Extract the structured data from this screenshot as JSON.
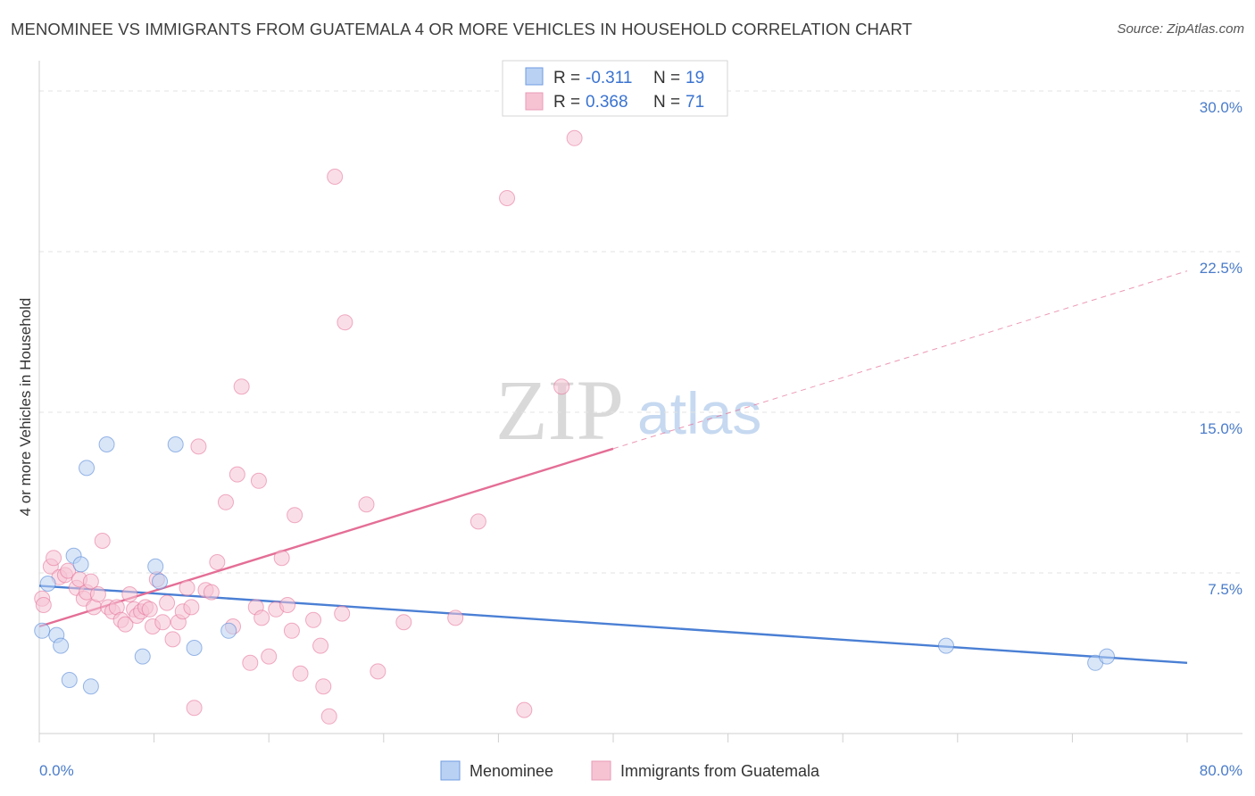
{
  "header": {
    "title": "MENOMINEE VS IMMIGRANTS FROM GUATEMALA 4 OR MORE VEHICLES IN HOUSEHOLD CORRELATION CHART",
    "source": "Source: ZipAtlas.com"
  },
  "watermark": {
    "zip": "ZIP",
    "atlas": "atlas"
  },
  "chart_data": {
    "type": "scatter",
    "title": "MENOMINEE VS IMMIGRANTS FROM GUATEMALA 4 OR MORE VEHICLES IN HOUSEHOLD CORRELATION CHART",
    "xlabel": "",
    "ylabel": "4 or more Vehicles in Household",
    "xlim": [
      0,
      80
    ],
    "ylim": [
      0,
      31
    ],
    "x_tick_labels": {
      "min": "0.0%",
      "max": "80.0%"
    },
    "y_ticks": [
      7.5,
      15.0,
      22.5,
      30.0
    ],
    "y_tick_labels": [
      "7.5%",
      "15.0%",
      "22.5%",
      "30.0%"
    ],
    "grid": true,
    "legend_position": "bottom-center",
    "stats": [
      {
        "r_label": "R =",
        "r_value": "-0.311",
        "n_label": "N =",
        "n_value": "19"
      },
      {
        "r_label": "R =",
        "r_value": "0.368",
        "n_label": "N =",
        "n_value": "71"
      }
    ],
    "series": [
      {
        "name": "Menominee",
        "color": "#4a7fd4",
        "fill": "#b9d1f3",
        "trend": {
          "x": [
            0,
            80
          ],
          "y": [
            6.9,
            3.3
          ],
          "dashed_beyond": null
        },
        "points": [
          {
            "x": 0.2,
            "y": 4.8
          },
          {
            "x": 0.6,
            "y": 7.0
          },
          {
            "x": 1.2,
            "y": 4.6
          },
          {
            "x": 1.5,
            "y": 4.1
          },
          {
            "x": 2.1,
            "y": 2.5
          },
          {
            "x": 2.4,
            "y": 8.3
          },
          {
            "x": 2.9,
            "y": 7.9
          },
          {
            "x": 3.3,
            "y": 12.4
          },
          {
            "x": 3.6,
            "y": 2.2
          },
          {
            "x": 4.7,
            "y": 13.5
          },
          {
            "x": 7.2,
            "y": 3.6
          },
          {
            "x": 8.1,
            "y": 7.8
          },
          {
            "x": 8.4,
            "y": 7.1
          },
          {
            "x": 9.5,
            "y": 13.5
          },
          {
            "x": 10.8,
            "y": 4.0
          },
          {
            "x": 13.2,
            "y": 4.8
          },
          {
            "x": 63.2,
            "y": 4.1
          },
          {
            "x": 73.6,
            "y": 3.3
          },
          {
            "x": 74.4,
            "y": 3.6
          }
        ]
      },
      {
        "name": "Immigrants from Guatemala",
        "color": "#e46e96",
        "fill": "#f6c3d3",
        "trend": {
          "x": [
            0,
            40
          ],
          "y": [
            5.0,
            13.3
          ],
          "dash_to": [
            80,
            21.6
          ]
        },
        "points": [
          {
            "x": 0.2,
            "y": 6.3
          },
          {
            "x": 0.3,
            "y": 6.0
          },
          {
            "x": 0.8,
            "y": 7.8
          },
          {
            "x": 1.0,
            "y": 8.2
          },
          {
            "x": 1.4,
            "y": 7.3
          },
          {
            "x": 1.8,
            "y": 7.4
          },
          {
            "x": 2.0,
            "y": 7.6
          },
          {
            "x": 2.6,
            "y": 6.8
          },
          {
            "x": 2.8,
            "y": 7.2
          },
          {
            "x": 3.1,
            "y": 6.3
          },
          {
            "x": 3.3,
            "y": 6.6
          },
          {
            "x": 3.6,
            "y": 7.1
          },
          {
            "x": 3.8,
            "y": 5.9
          },
          {
            "x": 4.1,
            "y": 6.5
          },
          {
            "x": 4.4,
            "y": 9.0
          },
          {
            "x": 4.8,
            "y": 5.9
          },
          {
            "x": 5.1,
            "y": 5.7
          },
          {
            "x": 5.4,
            "y": 5.9
          },
          {
            "x": 5.7,
            "y": 5.3
          },
          {
            "x": 6.0,
            "y": 5.1
          },
          {
            "x": 6.3,
            "y": 6.5
          },
          {
            "x": 6.6,
            "y": 5.8
          },
          {
            "x": 6.8,
            "y": 5.5
          },
          {
            "x": 7.1,
            "y": 5.7
          },
          {
            "x": 7.4,
            "y": 5.9
          },
          {
            "x": 7.7,
            "y": 5.8
          },
          {
            "x": 7.9,
            "y": 5.0
          },
          {
            "x": 8.2,
            "y": 7.2
          },
          {
            "x": 8.6,
            "y": 5.2
          },
          {
            "x": 8.9,
            "y": 6.1
          },
          {
            "x": 9.3,
            "y": 4.4
          },
          {
            "x": 9.7,
            "y": 5.2
          },
          {
            "x": 10.0,
            "y": 5.7
          },
          {
            "x": 10.3,
            "y": 6.8
          },
          {
            "x": 10.6,
            "y": 5.9
          },
          {
            "x": 10.8,
            "y": 1.2
          },
          {
            "x": 11.1,
            "y": 13.4
          },
          {
            "x": 11.6,
            "y": 6.7
          },
          {
            "x": 12.0,
            "y": 6.6
          },
          {
            "x": 12.4,
            "y": 8.0
          },
          {
            "x": 13.0,
            "y": 10.8
          },
          {
            "x": 13.5,
            "y": 5.0
          },
          {
            "x": 13.8,
            "y": 12.1
          },
          {
            "x": 14.1,
            "y": 16.2
          },
          {
            "x": 14.7,
            "y": 3.3
          },
          {
            "x": 15.1,
            "y": 5.9
          },
          {
            "x": 15.3,
            "y": 11.8
          },
          {
            "x": 15.5,
            "y": 5.4
          },
          {
            "x": 16.0,
            "y": 3.6
          },
          {
            "x": 16.5,
            "y": 5.8
          },
          {
            "x": 16.9,
            "y": 8.2
          },
          {
            "x": 17.3,
            "y": 6.0
          },
          {
            "x": 17.6,
            "y": 4.8
          },
          {
            "x": 17.8,
            "y": 10.2
          },
          {
            "x": 18.2,
            "y": 2.8
          },
          {
            "x": 19.1,
            "y": 5.3
          },
          {
            "x": 19.6,
            "y": 4.1
          },
          {
            "x": 19.8,
            "y": 2.2
          },
          {
            "x": 20.2,
            "y": 0.8
          },
          {
            "x": 20.6,
            "y": 26.0
          },
          {
            "x": 21.1,
            "y": 5.6
          },
          {
            "x": 21.3,
            "y": 19.2
          },
          {
            "x": 22.8,
            "y": 10.7
          },
          {
            "x": 23.6,
            "y": 2.9
          },
          {
            "x": 25.4,
            "y": 5.2
          },
          {
            "x": 29.0,
            "y": 5.4
          },
          {
            "x": 30.6,
            "y": 9.9
          },
          {
            "x": 32.6,
            "y": 25.0
          },
          {
            "x": 33.8,
            "y": 1.1
          },
          {
            "x": 36.4,
            "y": 16.2
          },
          {
            "x": 37.3,
            "y": 27.8
          }
        ]
      }
    ]
  }
}
